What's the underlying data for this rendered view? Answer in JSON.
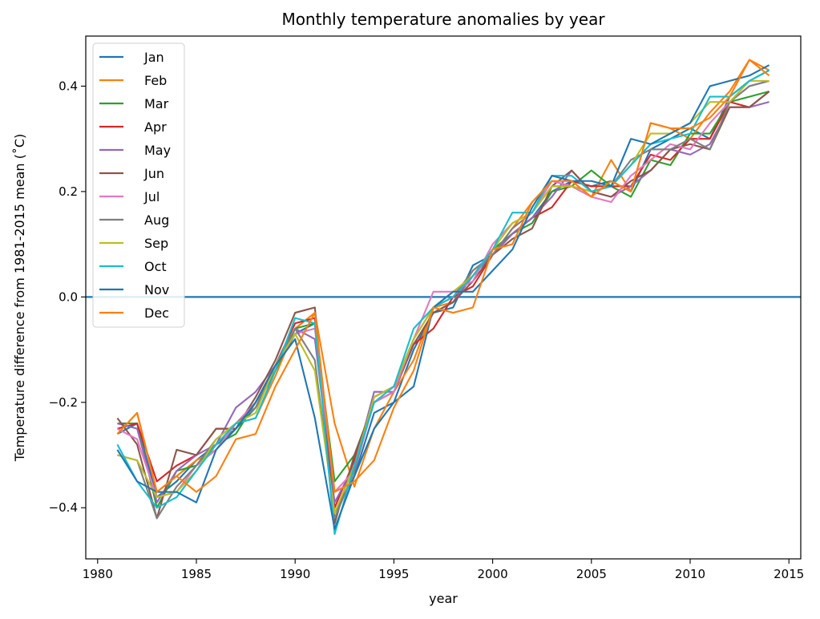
{
  "chart_data": {
    "type": "line",
    "title": "Monthly temperature anomalies by year",
    "xlabel": "year",
    "ylabel": "Temperature difference from 1981-2015 mean (˚C)",
    "xlim": [
      1979.4,
      2015.6
    ],
    "ylim": [
      -0.497,
      0.495
    ],
    "xticks": [
      1980,
      1985,
      1990,
      1995,
      2000,
      2005,
      2010,
      2015
    ],
    "yticks": [
      -0.4,
      -0.2,
      0.0,
      0.2,
      0.4
    ],
    "ytick_labels": [
      "−0.4",
      "−0.2",
      "0.0",
      "0.2",
      "0.4"
    ],
    "hline": 0.0,
    "hline_color": "#1f77b4",
    "grid": false,
    "legend_position": "upper-left",
    "x": [
      1981,
      1982,
      1983,
      1984,
      1985,
      1986,
      1987,
      1988,
      1989,
      1990,
      1991,
      1992,
      1993,
      1994,
      1995,
      1996,
      1997,
      1998,
      1999,
      2000,
      2001,
      2002,
      2003,
      2004,
      2005,
      2006,
      2007,
      2008,
      2009,
      2010,
      2011,
      2012,
      2013,
      2014
    ],
    "series": [
      {
        "name": "Jan",
        "color": "#1f77b4",
        "values": [
          -0.26,
          -0.24,
          -0.38,
          -0.35,
          -0.31,
          -0.28,
          -0.25,
          -0.21,
          -0.14,
          -0.07,
          -0.05,
          -0.41,
          -0.34,
          -0.22,
          -0.2,
          -0.1,
          -0.03,
          -0.02,
          0.06,
          0.08,
          0.12,
          0.15,
          0.2,
          0.22,
          0.21,
          0.22,
          0.2,
          0.28,
          0.3,
          0.32,
          0.3,
          0.38,
          0.41,
          0.43
        ]
      },
      {
        "name": "Feb",
        "color": "#ff7f0e",
        "values": [
          -0.26,
          -0.22,
          -0.37,
          -0.34,
          -0.31,
          -0.29,
          -0.24,
          -0.23,
          -0.15,
          -0.06,
          -0.03,
          -0.24,
          -0.36,
          -0.25,
          -0.18,
          -0.12,
          -0.02,
          -0.01,
          0.05,
          0.08,
          0.13,
          0.18,
          0.22,
          0.21,
          0.19,
          0.26,
          0.2,
          0.33,
          0.32,
          0.3,
          0.35,
          0.39,
          0.45,
          0.43
        ]
      },
      {
        "name": "Mar",
        "color": "#2ca02c",
        "values": [
          -0.24,
          -0.24,
          -0.4,
          -0.33,
          -0.32,
          -0.28,
          -0.26,
          -0.2,
          -0.14,
          -0.06,
          -0.05,
          -0.35,
          -0.3,
          -0.2,
          -0.18,
          -0.09,
          -0.03,
          -0.01,
          0.04,
          0.09,
          0.12,
          0.14,
          0.2,
          0.21,
          0.24,
          0.21,
          0.19,
          0.26,
          0.25,
          0.31,
          0.31,
          0.37,
          0.38,
          0.39
        ]
      },
      {
        "name": "Apr",
        "color": "#d62728",
        "values": [
          -0.25,
          -0.24,
          -0.35,
          -0.32,
          -0.3,
          -0.25,
          -0.25,
          -0.2,
          -0.13,
          -0.05,
          -0.04,
          -0.4,
          -0.31,
          -0.19,
          -0.17,
          -0.09,
          -0.06,
          0.0,
          0.02,
          0.08,
          0.12,
          0.15,
          0.17,
          0.22,
          0.21,
          0.21,
          0.21,
          0.27,
          0.26,
          0.3,
          0.3,
          0.37,
          0.36,
          0.39
        ]
      },
      {
        "name": "May",
        "color": "#9467bd",
        "values": [
          -0.24,
          -0.25,
          -0.39,
          -0.33,
          -0.3,
          -0.28,
          -0.21,
          -0.18,
          -0.13,
          -0.06,
          -0.08,
          -0.39,
          -0.32,
          -0.18,
          -0.18,
          -0.09,
          -0.03,
          -0.01,
          0.04,
          0.08,
          0.12,
          0.15,
          0.19,
          0.24,
          0.2,
          0.19,
          0.21,
          0.24,
          0.28,
          0.27,
          0.29,
          0.36,
          0.36,
          0.37
        ]
      },
      {
        "name": "Jun",
        "color": "#8c564b",
        "values": [
          -0.23,
          -0.28,
          -0.42,
          -0.29,
          -0.3,
          -0.25,
          -0.25,
          -0.19,
          -0.12,
          -0.03,
          -0.02,
          -0.43,
          -0.3,
          -0.2,
          -0.18,
          -0.09,
          -0.03,
          -0.01,
          0.03,
          0.08,
          0.11,
          0.13,
          0.21,
          0.24,
          0.2,
          0.19,
          0.22,
          0.24,
          0.28,
          0.29,
          0.28,
          0.36,
          0.36,
          0.39
        ]
      },
      {
        "name": "Jul",
        "color": "#e377c2",
        "values": [
          -0.25,
          -0.27,
          -0.38,
          -0.37,
          -0.32,
          -0.29,
          -0.24,
          -0.2,
          -0.13,
          -0.07,
          -0.06,
          -0.37,
          -0.33,
          -0.2,
          -0.18,
          -0.08,
          0.01,
          0.01,
          0.03,
          0.1,
          0.14,
          0.16,
          0.22,
          0.21,
          0.19,
          0.18,
          0.23,
          0.26,
          0.29,
          0.28,
          0.33,
          0.37,
          0.4,
          0.41
        ]
      },
      {
        "name": "Aug",
        "color": "#7f7f7f",
        "values": [
          -0.3,
          -0.31,
          -0.42,
          -0.36,
          -0.32,
          -0.27,
          -0.24,
          -0.21,
          -0.13,
          -0.06,
          -0.12,
          -0.42,
          -0.33,
          -0.19,
          -0.17,
          -0.08,
          -0.02,
          0.0,
          0.05,
          0.08,
          0.13,
          0.16,
          0.21,
          0.21,
          0.2,
          0.21,
          0.26,
          0.28,
          0.28,
          0.3,
          0.28,
          0.37,
          0.4,
          0.41
        ]
      },
      {
        "name": "Sep",
        "color": "#bcbd22",
        "values": [
          -0.3,
          -0.31,
          -0.38,
          -0.37,
          -0.33,
          -0.27,
          -0.24,
          -0.22,
          -0.13,
          -0.07,
          -0.14,
          -0.41,
          -0.32,
          -0.19,
          -0.17,
          -0.08,
          -0.02,
          0.01,
          0.04,
          0.09,
          0.14,
          0.16,
          0.21,
          0.21,
          0.2,
          0.21,
          0.25,
          0.31,
          0.31,
          0.33,
          0.37,
          0.37,
          0.41,
          0.41
        ]
      },
      {
        "name": "Oct",
        "color": "#17becf",
        "values": [
          -0.28,
          -0.35,
          -0.4,
          -0.38,
          -0.33,
          -0.28,
          -0.24,
          -0.23,
          -0.14,
          -0.04,
          -0.05,
          -0.45,
          -0.32,
          -0.2,
          -0.17,
          -0.06,
          -0.02,
          0.0,
          0.04,
          0.09,
          0.16,
          0.16,
          0.23,
          0.23,
          0.2,
          0.21,
          0.25,
          0.29,
          0.3,
          0.31,
          0.38,
          0.38,
          0.41,
          0.43
        ]
      },
      {
        "name": "Nov",
        "color": "#1f77b4",
        "values": [
          -0.29,
          -0.35,
          -0.37,
          -0.37,
          -0.39,
          -0.29,
          -0.25,
          -0.2,
          -0.13,
          -0.08,
          -0.23,
          -0.44,
          -0.34,
          -0.25,
          -0.2,
          -0.17,
          -0.02,
          0.01,
          0.01,
          0.05,
          0.09,
          0.17,
          0.23,
          0.22,
          0.22,
          0.21,
          0.3,
          0.29,
          0.31,
          0.33,
          0.4,
          0.41,
          0.42,
          0.44
        ]
      },
      {
        "name": "Dec",
        "color": "#ff7f0e",
        "values": [
          -0.26,
          -0.22,
          -0.37,
          -0.34,
          -0.37,
          -0.34,
          -0.27,
          -0.26,
          -0.17,
          -0.1,
          -0.03,
          -0.37,
          -0.35,
          -0.31,
          -0.21,
          -0.14,
          -0.02,
          -0.03,
          -0.02,
          0.09,
          0.1,
          0.18,
          0.22,
          0.22,
          0.19,
          0.22,
          0.2,
          0.33,
          0.32,
          0.32,
          0.34,
          0.38,
          0.45,
          0.42
        ]
      }
    ]
  }
}
